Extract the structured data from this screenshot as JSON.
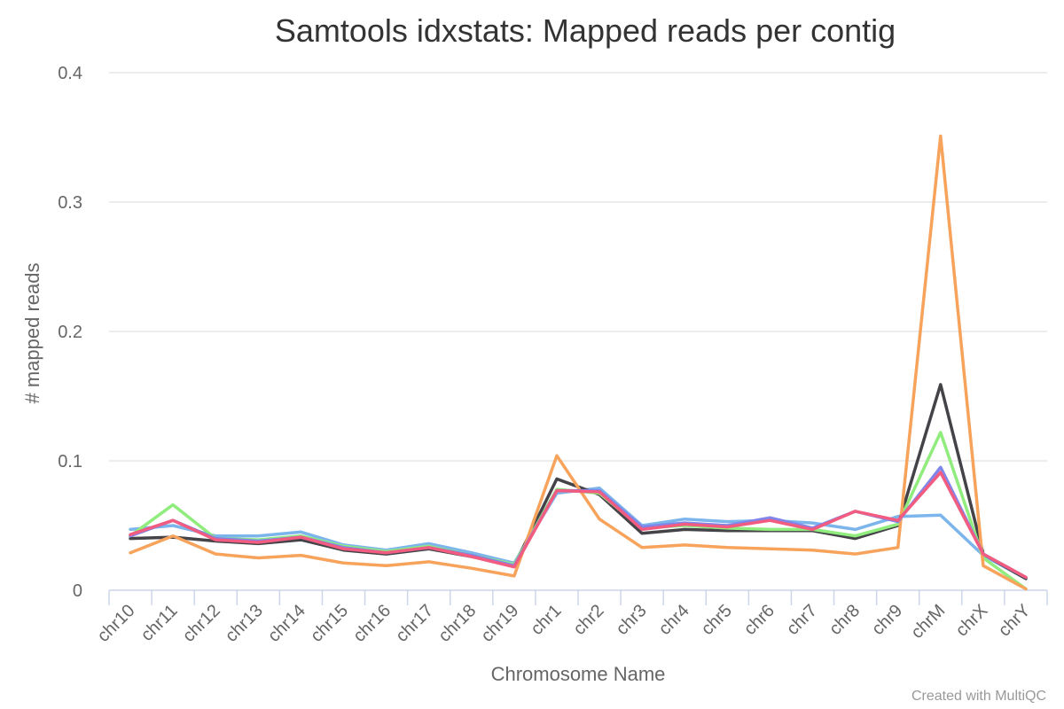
{
  "chart_data": {
    "type": "line",
    "title": "Samtools idxstats: Mapped reads per contig",
    "xlabel": "Chromosome Name",
    "ylabel": "# mapped reads",
    "credit": "Created with MultiQC",
    "ylim": [
      0,
      0.4
    ],
    "y_ticks": [
      0,
      0.1,
      0.2,
      0.3,
      0.4
    ],
    "y_tick_labels": [
      "0",
      "0.1",
      "0.2",
      "0.3",
      "0.4"
    ],
    "grid": true,
    "categories": [
      "chr10",
      "chr11",
      "chr12",
      "chr13",
      "chr14",
      "chr15",
      "chr16",
      "chr17",
      "chr18",
      "chr19",
      "chr1",
      "chr2",
      "chr3",
      "chr4",
      "chr5",
      "chr6",
      "chr7",
      "chr8",
      "chr9",
      "chrM",
      "chrX",
      "chrY"
    ],
    "series": [
      {
        "color": "#7cb5ec",
        "values": [
          0.047,
          0.05,
          0.042,
          0.042,
          0.045,
          0.035,
          0.031,
          0.036,
          0.029,
          0.021,
          0.075,
          0.079,
          0.05,
          0.055,
          0.053,
          0.054,
          0.052,
          0.047,
          0.057,
          0.058,
          0.027,
          0.009
        ]
      },
      {
        "color": "#434348",
        "values": [
          0.04,
          0.041,
          0.038,
          0.036,
          0.039,
          0.031,
          0.028,
          0.032,
          0.026,
          0.019,
          0.086,
          0.074,
          0.044,
          0.047,
          0.046,
          0.046,
          0.046,
          0.04,
          0.05,
          0.159,
          0.028,
          0.009
        ]
      },
      {
        "color": "#90ed7d",
        "values": [
          0.042,
          0.066,
          0.04,
          0.039,
          0.042,
          0.034,
          0.03,
          0.034,
          0.027,
          0.02,
          0.078,
          0.075,
          0.048,
          0.05,
          0.048,
          0.047,
          0.047,
          0.042,
          0.051,
          0.122,
          0.025,
          0.001
        ]
      },
      {
        "color": "#f7a35c",
        "values": [
          0.029,
          0.042,
          0.028,
          0.025,
          0.027,
          0.021,
          0.019,
          0.022,
          0.017,
          0.011,
          0.104,
          0.055,
          0.033,
          0.035,
          0.033,
          0.032,
          0.031,
          0.028,
          0.033,
          0.351,
          0.019,
          0.001
        ]
      },
      {
        "color": "#8085e9",
        "values": [
          0.042,
          0.054,
          0.04,
          0.038,
          0.041,
          0.033,
          0.029,
          0.033,
          0.027,
          0.019,
          0.077,
          0.077,
          0.049,
          0.052,
          0.05,
          0.056,
          0.048,
          0.061,
          0.053,
          0.095,
          0.028,
          0.01
        ]
      },
      {
        "color": "#f15c80",
        "values": [
          0.043,
          0.054,
          0.039,
          0.037,
          0.041,
          0.032,
          0.029,
          0.033,
          0.026,
          0.018,
          0.077,
          0.076,
          0.047,
          0.051,
          0.049,
          0.054,
          0.047,
          0.061,
          0.054,
          0.091,
          0.028,
          0.01
        ]
      }
    ]
  }
}
